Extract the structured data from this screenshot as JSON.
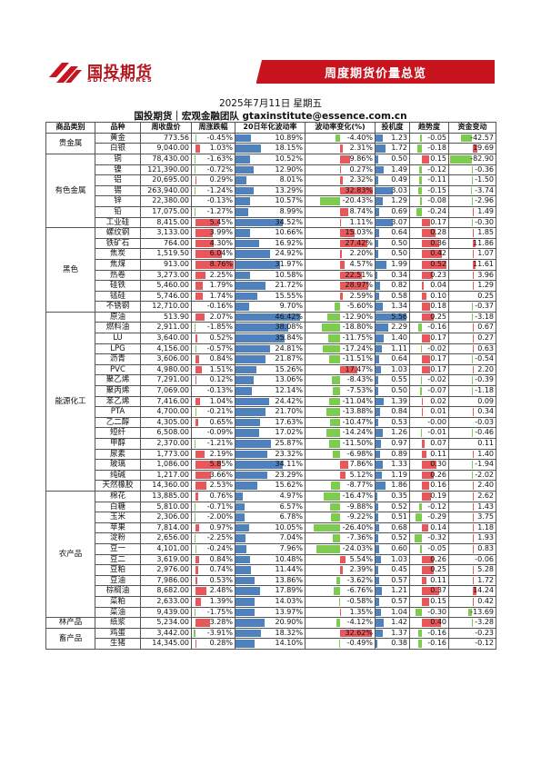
{
  "brand": {
    "cn": "国投期货",
    "en": "SDIC FUTURES"
  },
  "banner": "周度期货价量总览",
  "date": "2025年7月11日 星期五",
  "team": "国投期货｜宏观金融团队 gtaxinstitute@essence.com.cn",
  "columns": [
    "商品类别",
    "品种",
    "周收盘价",
    "周涨跌幅",
    "20日年化波动率",
    "波动率变化(%)",
    "投机度",
    "趋势度",
    "资金变动"
  ],
  "groups": [
    {
      "name": "贵金属",
      "rows": [
        [
          "黄金",
          "773.56",
          "-0.45%",
          "10.89%",
          "-4.40%",
          "1.23",
          "-0.05",
          "-42.57"
        ],
        [
          "白银",
          "9,040.00",
          "1.03%",
          "18.15%",
          "2.31%",
          "1.72",
          "-0.18",
          "19.69"
        ]
      ]
    },
    {
      "name": "有色金属",
      "rows": [
        [
          "铜",
          "78,430.00",
          "-1.63%",
          "10.52%",
          "9.86%",
          "0.50",
          "0.15",
          "-82.90"
        ],
        [
          "镍",
          "121,390.00",
          "-0.72%",
          "12.90%",
          "0.27%",
          "1.49",
          "-0.12",
          "-0.36"
        ],
        [
          "铝",
          "20,695.00",
          "0.29%",
          "8.01%",
          "2.32%",
          "0.49",
          "-0.11",
          "-1.50"
        ],
        [
          "锡",
          "263,940.00",
          "-1.24%",
          "13.29%",
          "32.83%",
          "3.03",
          "-0.15",
          "-3.74"
        ],
        [
          "锌",
          "22,380.00",
          "-0.13%",
          "10.57%",
          "-20.43%",
          "1.29",
          "-0.08",
          "-2.96"
        ],
        [
          "铅",
          "17,075.00",
          "-1.27%",
          "8.99%",
          "8.74%",
          "0.69",
          "-0.24",
          "1.49"
        ],
        [
          "工业硅",
          "8,415.00",
          "5.45%",
          "34.52%",
          "1.11%",
          "3.07",
          "0.17",
          "-0.30"
        ]
      ]
    },
    {
      "name": "黑色",
      "rows": [
        [
          "螺纹钢",
          "3,133.00",
          "3.99%",
          "10.66%",
          "15.03%",
          "0.64",
          "0.28",
          "1.85"
        ],
        [
          "铁矿石",
          "764.00",
          "4.30%",
          "16.92%",
          "27.42%",
          "0.50",
          "0.36",
          "11.86"
        ],
        [
          "焦炭",
          "1,519.50",
          "6.04%",
          "24.92%",
          "2.20%",
          "0.50",
          "0.42",
          "1.07"
        ],
        [
          "焦煤",
          "913.00",
          "8.76%",
          "31.97%",
          "4.57%",
          "1.99",
          "0.52",
          "11.61"
        ],
        [
          "热卷",
          "3,273.00",
          "2.25%",
          "10.58%",
          "22.51%",
          "0.34",
          "0.23",
          "3.96"
        ],
        [
          "硅铁",
          "5,460.00",
          "1.79%",
          "21.72%",
          "28.97%",
          "0.82",
          "0.04",
          "1.29"
        ],
        [
          "锰硅",
          "5,746.00",
          "1.74%",
          "15.55%",
          "2.59%",
          "0.58",
          "0.10",
          "0.25"
        ],
        [
          "不锈钢",
          "12,710.00",
          "-0.16%",
          "9.70%",
          "-5.60%",
          "1.34",
          "0.18",
          "-0.37"
        ]
      ]
    },
    {
      "name": "能源化工",
      "rows": [
        [
          "原油",
          "513.90",
          "2.07%",
          "46.42%",
          "-12.90%",
          "5.56",
          "0.25",
          "-3.18"
        ],
        [
          "燃料油",
          "2,911.00",
          "-1.85%",
          "38.08%",
          "-18.80%",
          "2.29",
          "-0.16",
          "0.67"
        ],
        [
          "LU",
          "3,640.00",
          "0.52%",
          "35.84%",
          "-11.75%",
          "1.40",
          "0.17",
          "0.27"
        ],
        [
          "LPG",
          "4,156.00",
          "-0.57%",
          "24.81%",
          "-17.24%",
          "1.11",
          "-0.02",
          "0.63"
        ],
        [
          "沥青",
          "3,606.00",
          "0.84%",
          "21.87%",
          "-11.51%",
          "0.64",
          "0.17",
          "-0.54"
        ],
        [
          "PVC",
          "4,980.00",
          "1.51%",
          "15.26%",
          "17.47%",
          "1.03",
          "0.17",
          "2.20"
        ],
        [
          "聚乙烯",
          "7,291.00",
          "0.12%",
          "13.06%",
          "-8.43%",
          "0.55",
          "-0.02",
          "-0.39"
        ],
        [
          "聚丙烯",
          "7,069.00",
          "-0.13%",
          "12.14%",
          "-7.53%",
          "0.50",
          "-0.07",
          "-1.18"
        ],
        [
          "苯乙烯",
          "7,416.00",
          "1.04%",
          "24.42%",
          "-11.04%",
          "1.39",
          "0.02",
          "0.09"
        ],
        [
          "PTA",
          "4,700.00",
          "-0.21%",
          "21.70%",
          "-13.88%",
          "0.84",
          "0.01",
          "0.34"
        ],
        [
          "乙二醇",
          "4,305.00",
          "0.65%",
          "17.63%",
          "-10.47%",
          "0.53",
          "-0.00",
          "-0.03"
        ],
        [
          "短纤",
          "6,508.00",
          "-0.09%",
          "17.02%",
          "-14.24%",
          "1.26",
          "-0.01",
          "-0.46"
        ],
        [
          "甲醇",
          "2,370.00",
          "-1.21%",
          "25.87%",
          "-11.50%",
          "0.97",
          "0.07",
          "0.11"
        ],
        [
          "尿素",
          "1,773.00",
          "2.19%",
          "23.32%",
          "-6.98%",
          "0.89",
          "0.11",
          "1.40"
        ],
        [
          "玻璃",
          "1,086.00",
          "5.85%",
          "34.11%",
          "7.86%",
          "1.33",
          "0.30",
          "-1.94"
        ],
        [
          "纯碱",
          "1,217.00",
          "3.66%",
          "23.29%",
          "5.12%",
          "1.19",
          "0.26",
          "-2.02"
        ],
        [
          "天然橡胶",
          "14,360.00",
          "2.53%",
          "15.62%",
          "-8.77%",
          "1.86",
          "0.16",
          "2.40"
        ]
      ]
    },
    {
      "name": "农产品",
      "rows": [
        [
          "棉花",
          "13,885.00",
          "0.76%",
          "4.97%",
          "-16.47%",
          "0.35",
          "0.19",
          "2.62"
        ],
        [
          "白糖",
          "5,810.00",
          "-0.71%",
          "6.57%",
          "-9.88%",
          "0.52",
          "-0.12",
          "1.43"
        ],
        [
          "玉米",
          "2,306.00",
          "-2.00%",
          "6.78%",
          "-9.22%",
          "0.51",
          "-0.29",
          "3.75"
        ],
        [
          "苹果",
          "7,814.00",
          "0.97%",
          "10.05%",
          "-26.40%",
          "0.68",
          "0.14",
          "1.18"
        ],
        [
          "淀粉",
          "2,656.00",
          "-2.25%",
          "7.04%",
          "-7.36%",
          "0.52",
          "-0.32",
          "1.93"
        ],
        [
          "豆一",
          "4,101.00",
          "-0.24%",
          "7.96%",
          "-24.03%",
          "0.60",
          "-0.05",
          "0.83"
        ],
        [
          "豆二",
          "3,619.00",
          "0.84%",
          "10.48%",
          "5.54%",
          "1.03",
          "0.26",
          "-0.06"
        ],
        [
          "豆粕",
          "2,976.00",
          "0.74%",
          "11.44%",
          "2.39%",
          "0.45",
          "0.25",
          "5.28"
        ],
        [
          "豆油",
          "7,986.00",
          "0.53%",
          "13.86%",
          "-3.62%",
          "0.57",
          "0.11",
          "1.72"
        ],
        [
          "棕榈油",
          "8,682.00",
          "2.48%",
          "17.89%",
          "-6.76%",
          "1.21",
          "0.37",
          "14.24"
        ],
        [
          "菜粕",
          "2,633.00",
          "1.39%",
          "14.03%",
          "-0.58%",
          "0.57",
          "0.15",
          "0.42"
        ],
        [
          "菜油",
          "9,439.00",
          "-1.75%",
          "13.97%",
          "1.35%",
          "1.04",
          "-0.30",
          "-13.69"
        ]
      ]
    },
    {
      "name": "林产品",
      "rows": [
        [
          "纸浆",
          "5,234.00",
          "3.28%",
          "20.90%",
          "-4.12%",
          "1.42",
          "0.40",
          "-3.28"
        ]
      ]
    },
    {
      "name": "畜产品",
      "rows": [
        [
          "鸡蛋",
          "3,442.00",
          "-3.91%",
          "18.32%",
          "32.62%",
          "1.37",
          "-0.16",
          "-0.23"
        ],
        [
          "生猪",
          "14,345.00",
          "0.28%",
          "14.10%",
          "-0.49%",
          "0.38",
          "-0.16",
          "-0.12"
        ]
      ]
    }
  ],
  "colors": {
    "positive": "#e8585b",
    "negative": "#7dcb4f",
    "vol": "#4f81bd",
    "brand": "#c8141e"
  }
}
